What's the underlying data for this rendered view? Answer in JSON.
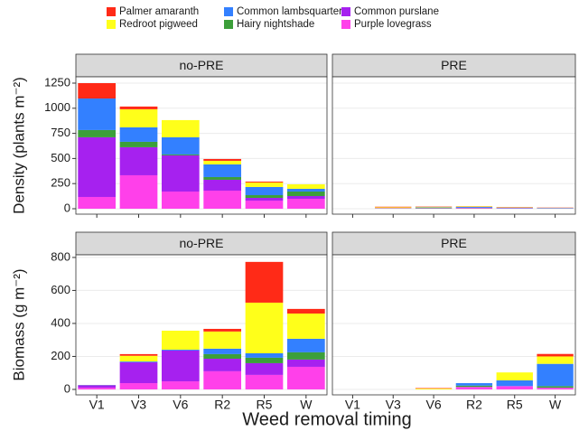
{
  "chart_data": {
    "type": "bar",
    "stacked": true,
    "grid": true,
    "xlabel": "Weed removal timing",
    "categories": [
      "V1",
      "V3",
      "V6",
      "R2",
      "R5",
      "W"
    ],
    "series": [
      {
        "name": "Palmer amaranth",
        "color": "#ff2a17"
      },
      {
        "name": "Redroot pigweed",
        "color": "#ffff1a"
      },
      {
        "name": "Common lambsquarters",
        "color": "#3380ff"
      },
      {
        "name": "Hairy nightshade",
        "color": "#3c9f3a"
      },
      {
        "name": "Common purslane",
        "color": "#a621ef"
      },
      {
        "name": "Purple lovegrass",
        "color": "#ff40ea"
      }
    ],
    "rows": [
      {
        "ylabel": "Density (plants m⁻²)",
        "ylim": [
          -54,
          1313
        ],
        "yticks": [
          0,
          250,
          500,
          750,
          1000,
          1250
        ],
        "panels": [
          {
            "strip": "no-PRE",
            "values": [
              [
                153,
                27,
                0,
                18,
                9,
                0
              ],
              [
                0,
                180,
                171,
                36,
                45,
                45
              ],
              [
                314,
                144,
                171,
                126,
                81,
                27
              ],
              [
                72,
                54,
                9,
                27,
                27,
                45
              ],
              [
                594,
                279,
                360,
                108,
                27,
                27
              ],
              [
                117,
                333,
                171,
                180,
                81,
                99
              ]
            ]
          },
          {
            "strip": "PRE",
            "values": [
              [
                0,
                5,
                3,
                2,
                3,
                2
              ],
              [
                0,
                8,
                6,
                5,
                4,
                2
              ],
              [
                0,
                2,
                5,
                8,
                5,
                4
              ],
              [
                0,
                1,
                4,
                3,
                2,
                1
              ],
              [
                0,
                1,
                1,
                2,
                1,
                1
              ],
              [
                0,
                3,
                3,
                5,
                3,
                2
              ]
            ]
          }
        ]
      },
      {
        "ylabel": "Biomass (g m⁻²)",
        "ylim": [
          -33,
          816
        ],
        "yticks": [
          0,
          200,
          400,
          600,
          800
        ],
        "panels": [
          {
            "strip": "no-PRE",
            "values": [
              [
                0,
                10,
                0,
                16,
                247,
                28
              ],
              [
                0,
                35,
                115,
                104,
                307,
                153
              ],
              [
                1,
                5,
                5,
                33,
                27,
                82
              ],
              [
                1,
                0,
                0,
                28,
                33,
                44
              ],
              [
                15,
                126,
                187,
                76,
                71,
                44
              ],
              [
                10,
                38,
                49,
                110,
                88,
                137
              ]
            ]
          },
          {
            "strip": "PRE",
            "values": [
              [
                0,
                0,
                3,
                0,
                0,
                15
              ],
              [
                0,
                0,
                5,
                0,
                48,
                45
              ],
              [
                0,
                0,
                0,
                15,
                35,
                135
              ],
              [
                0,
                0,
                0,
                8,
                0,
                10
              ],
              [
                0,
                0,
                0,
                0,
                0,
                0
              ],
              [
                0,
                0,
                0,
                15,
                20,
                10
              ]
            ]
          }
        ]
      }
    ]
  }
}
